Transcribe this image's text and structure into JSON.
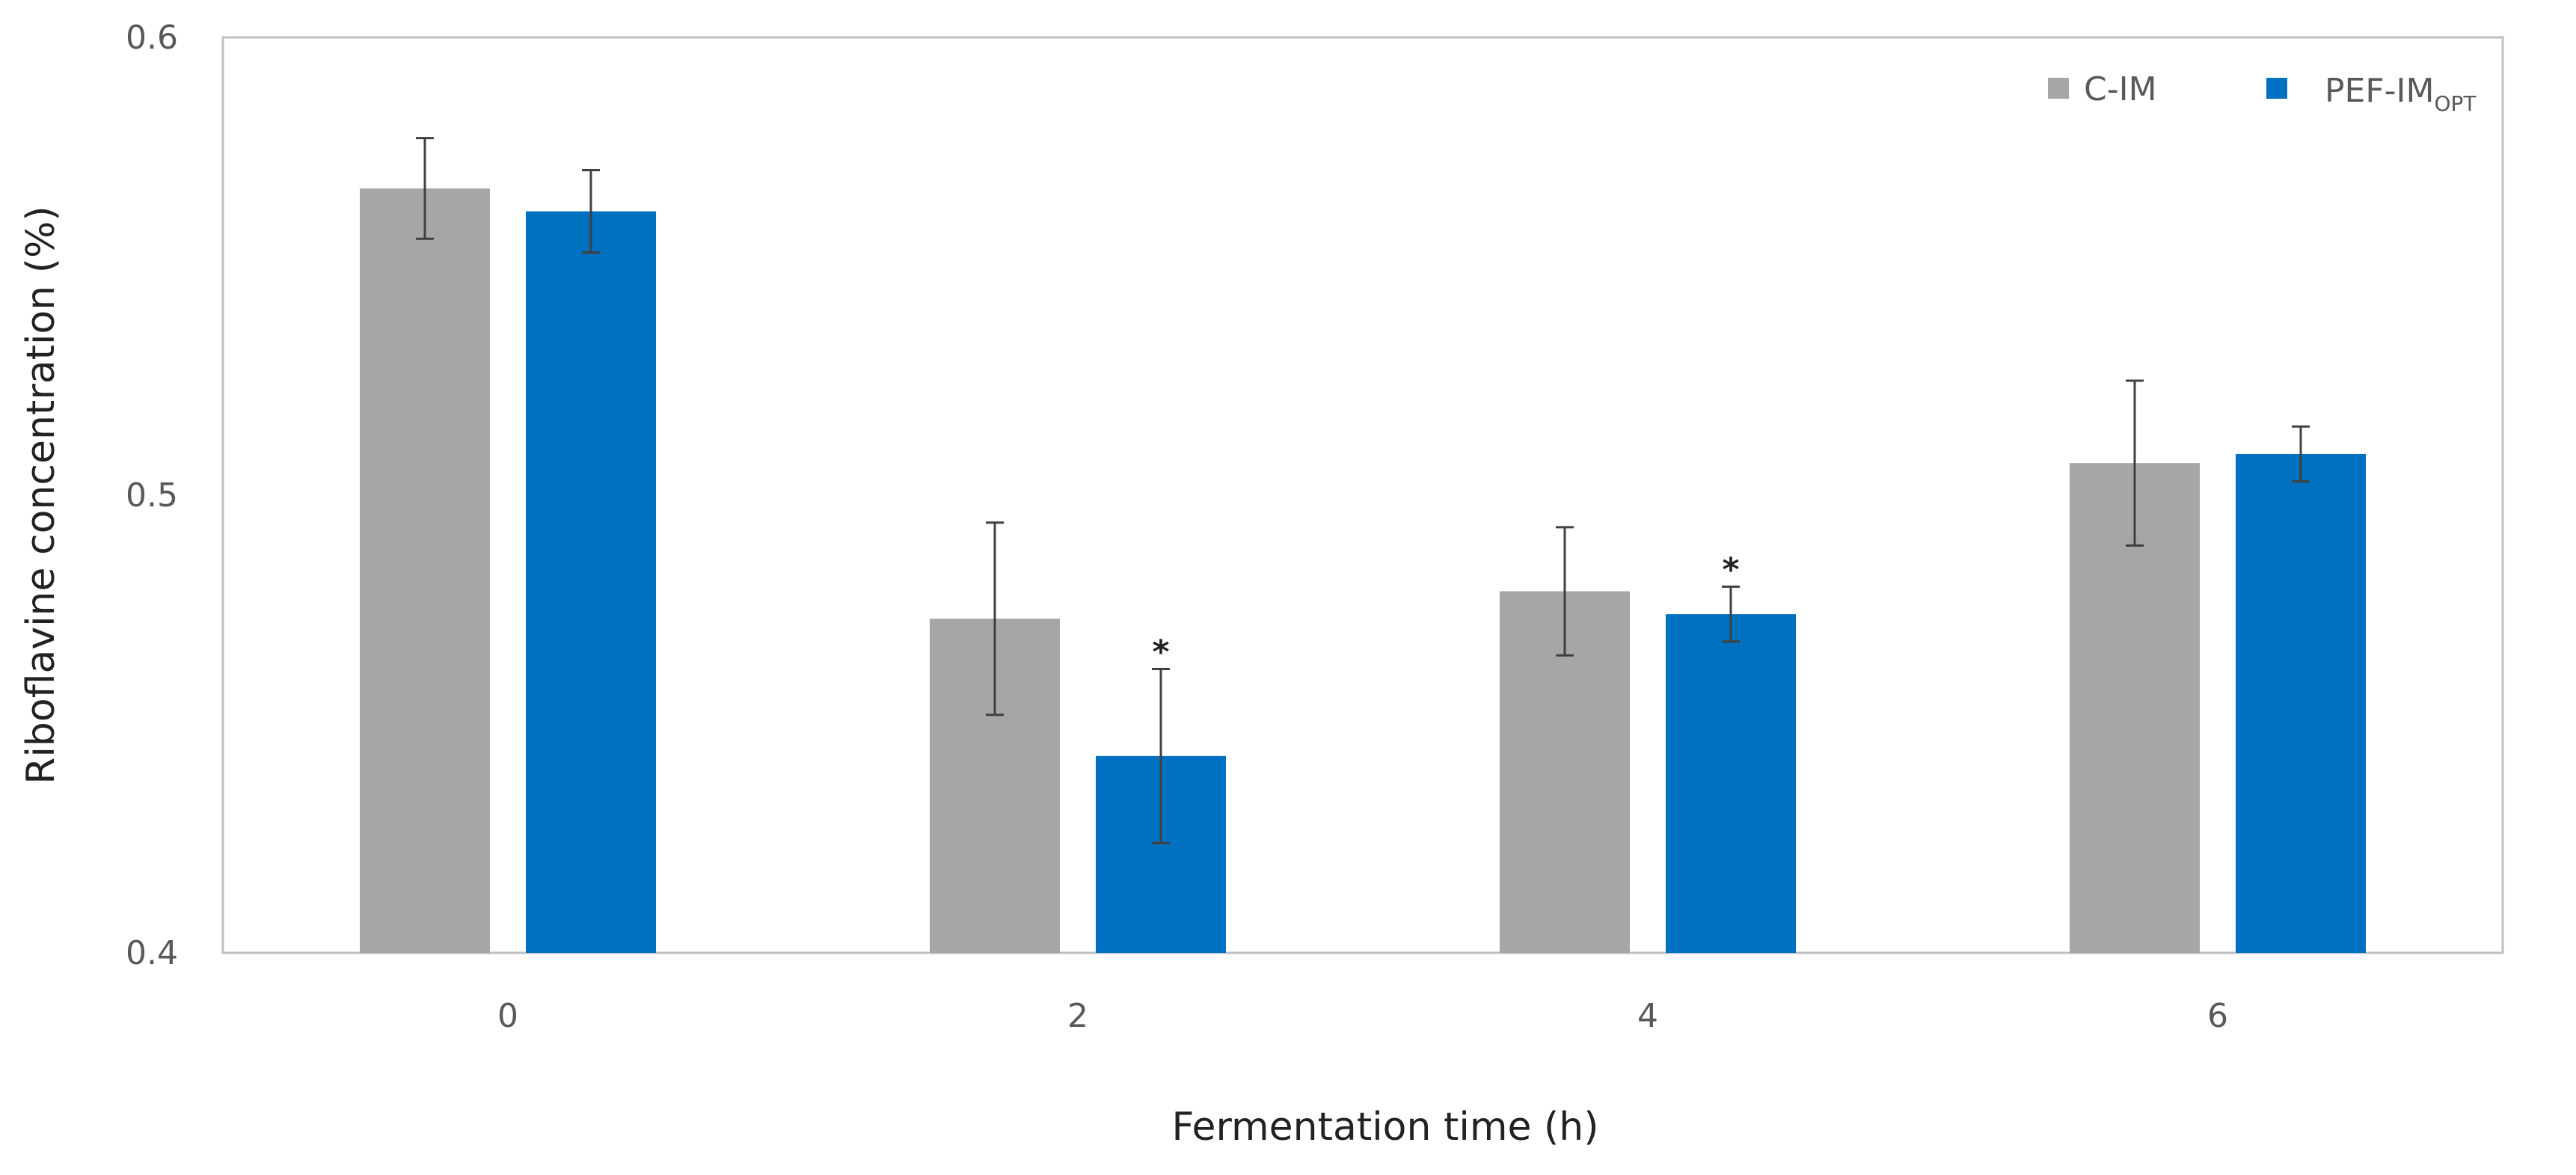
{
  "chart_data": {
    "type": "bar",
    "title": "",
    "xlabel": "Fermentation time (h)",
    "ylabel": "Riboflavine concentration (%)",
    "ylim": [
      0.4,
      0.6
    ],
    "yticks": [
      0.4,
      0.5,
      0.6
    ],
    "ytick_labels": [
      "0.4",
      "0.5",
      "0.6"
    ],
    "categories": [
      "0",
      "2",
      "4",
      "6"
    ],
    "legend_position": "top-right",
    "series": [
      {
        "name": "C-IM",
        "name_main": "C-IM",
        "name_sub": "",
        "color": "#a6a6a6",
        "values": [
          0.567,
          0.473,
          0.479,
          0.507
        ],
        "errors": [
          0.011,
          0.021,
          0.014,
          0.018
        ],
        "significance": [
          "",
          "",
          "",
          ""
        ]
      },
      {
        "name": "PEF-IMOPT",
        "name_main": "PEF-IM",
        "name_sub": "OPT",
        "color": "#0070c0",
        "values": [
          0.562,
          0.443,
          0.474,
          0.509
        ],
        "errors": [
          0.009,
          0.019,
          0.006,
          0.006
        ],
        "significance": [
          "",
          "*",
          "*",
          ""
        ]
      }
    ]
  }
}
